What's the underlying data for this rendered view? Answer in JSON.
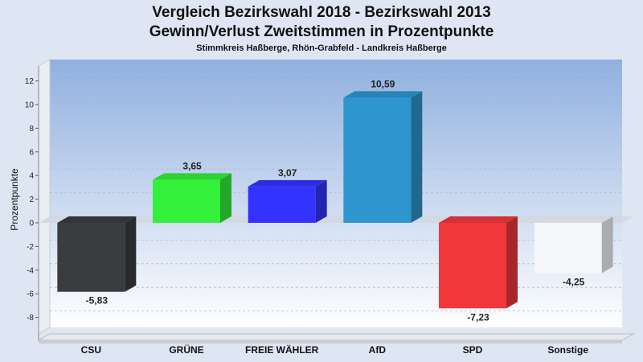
{
  "chart_data": {
    "type": "bar",
    "title": "Vergleich Bezirkswahl 2018 - Bezirkswahl 2013",
    "subtitle": "Gewinn/Verlust Zweitstimmen in Prozentpunkte",
    "subsubtitle": "Stimmkreis Haßberge, Rhön-Grabfeld - Landkreis Haßberge",
    "xlabel": "",
    "ylabel": "Prozentpunkte",
    "ylim": [
      -10,
      13
    ],
    "yticks": [
      12,
      10,
      8,
      6,
      4,
      2,
      0,
      -2,
      -4,
      -6,
      -8
    ],
    "grid": true,
    "categories": [
      "CSU",
      "GRÜNE",
      "FREIE WÄHLER",
      "AfD",
      "SPD",
      "Sonstige"
    ],
    "values": [
      -5.83,
      3.65,
      3.07,
      10.59,
      -7.23,
      -4.25
    ],
    "value_labels": [
      "-5,83",
      "3,65",
      "3,07",
      "10,59",
      "-7,23",
      "-4,25"
    ],
    "colors": [
      "#3a3c40",
      "#33f03a",
      "#3333ff",
      "#2f95cf",
      "#f0383c",
      "#f4f6fa"
    ]
  }
}
